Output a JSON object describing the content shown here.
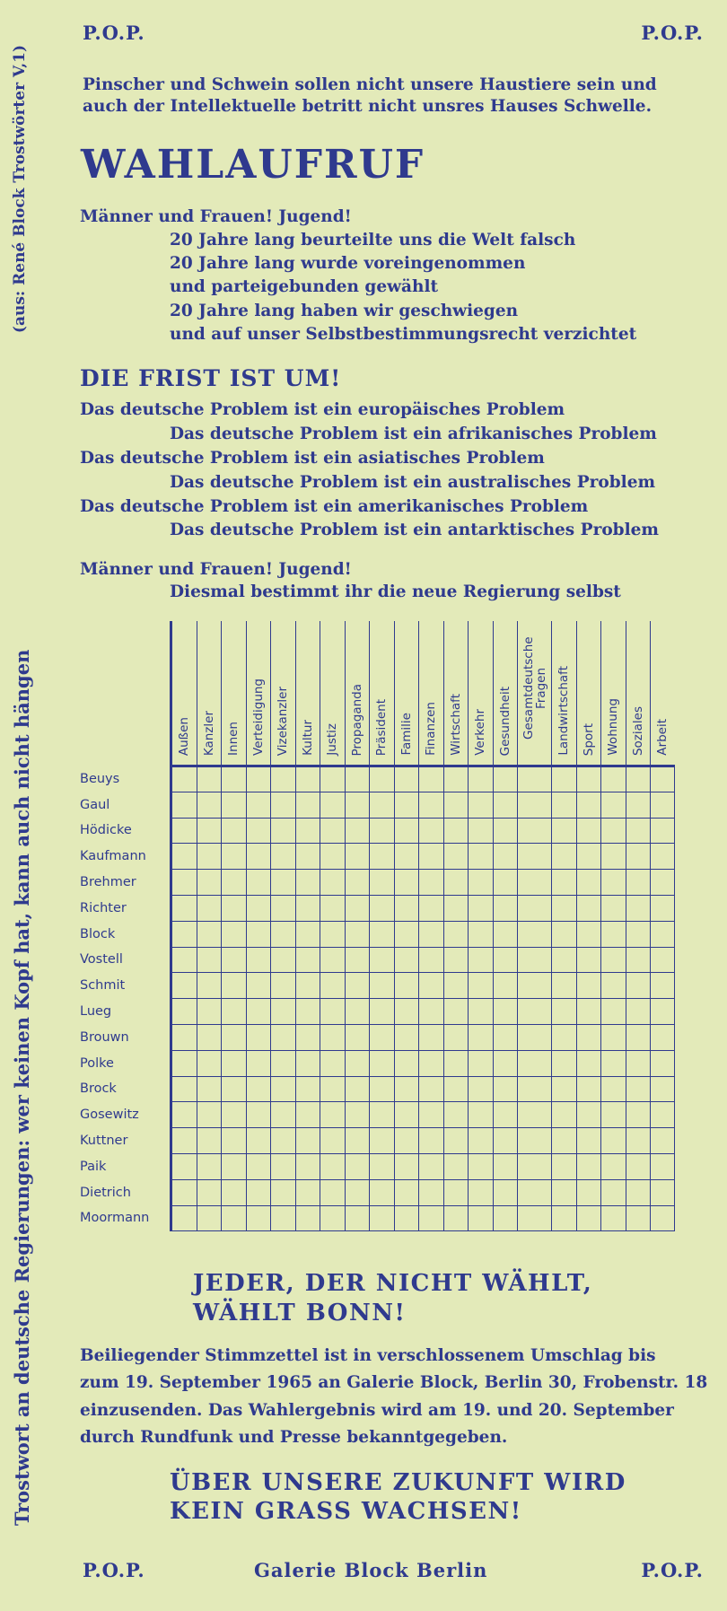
{
  "header": {
    "left": "P.O.P.",
    "right": "P.O.P."
  },
  "intro": [
    "Pinscher und Schwein sollen nicht unsere Haustiere sein und",
    "auch der Intellektuelle betritt nicht unsres Hauses Schwelle."
  ],
  "title": "WAHLAUFRUF",
  "appeal": {
    "lead": "Männer und Frauen! Jugend!",
    "lines": [
      "20 Jahre lang beurteilte uns die Welt falsch",
      "20 Jahre lang wurde voreingenommen",
      "und parteigebunden gewählt",
      "20 Jahre lang haben wir geschwiegen",
      "und auf unser Selbstbestimmungsrecht verzichtet"
    ]
  },
  "deadline": "DIE FRIST IST UM!",
  "problems": [
    "Das deutsche Problem ist ein europäisches Problem",
    "Das deutsche Problem ist ein afrikanisches Problem",
    "Das deutsche Problem ist ein asiatisches Problem",
    "Das deutsche Problem ist ein australisches Problem",
    "Das deutsche Problem ist ein amerikanisches Problem",
    "Das deutsche Problem ist ein antarktisches Problem"
  ],
  "appeal2": {
    "lead": "Männer und Frauen! Jugend!",
    "line": "Diesmal bestimmt ihr die neue Regierung selbst"
  },
  "ballot": {
    "columns": [
      "Außen",
      "Kanzler",
      "Innen",
      "Verteidigung",
      "Vizekanzler",
      "Kultur",
      "Justiz",
      "Propaganda",
      "Präsident",
      "Familie",
      "Finanzen",
      "Wirtschaft",
      "Verkehr",
      "Gesundheit",
      "Gesamtdeutsche Fragen",
      "Landwirtschaft",
      "Sport",
      "Wohnung",
      "Soziales",
      "Arbeit"
    ],
    "candidates": [
      "Beuys",
      "Gaul",
      "Hödicke",
      "Kaufmann",
      "Brehmer",
      "Richter",
      "Block",
      "Vostell",
      "Schmit",
      "Lueg",
      "Brouwn",
      "Polke",
      "Brock",
      "Gosewitz",
      "Kuttner",
      "Paik",
      "Dietrich",
      "Moormann"
    ]
  },
  "slogan1": [
    "JEDER, DER NICHT WÄHLT,",
    "WÄHLT BONN!"
  ],
  "instructions": [
    "Beiliegender Stimmzettel ist in verschlossenem Umschlag bis",
    "zum 19. September 1965 an Galerie Block, Berlin 30, Frobenstr. 18",
    "einzusenden. Das Wahlergebnis wird am 19. und 20. September",
    "durch Rundfunk und Presse bekanntgegeben."
  ],
  "slogan2": [
    "ÜBER UNSERE ZUKUNFT WIRD",
    "KEIN GRASS WACHSEN!"
  ],
  "footer": {
    "left": "P.O.P.",
    "center": "Galerie Block Berlin",
    "right": "P.O.P."
  },
  "sidebar": {
    "main": "Trostwort an deutsche Regierungen: wer keinen Kopf hat, kann auch nicht hängen",
    "source": "(aus: René Block Trostwörter V,1)"
  },
  "colors": {
    "paper": "#e3eab9",
    "ink": "#2f3a8e"
  }
}
